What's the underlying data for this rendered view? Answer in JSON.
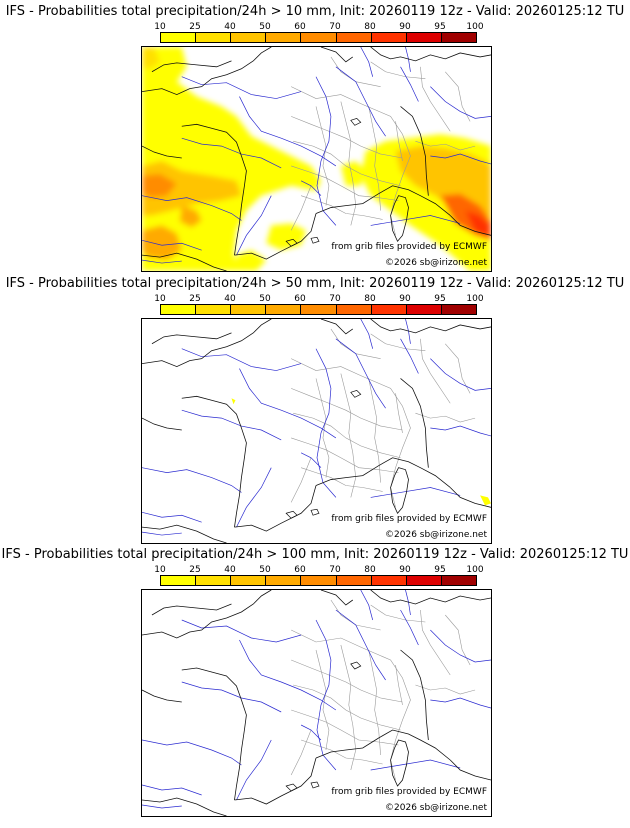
{
  "colorbar": {
    "labels": [
      "10",
      "25",
      "40",
      "50",
      "60",
      "70",
      "80",
      "90",
      "95",
      "100"
    ],
    "colors": [
      "#ffff00",
      "#ffe000",
      "#ffc400",
      "#ffaa00",
      "#ff8c00",
      "#ff6600",
      "#ff3300",
      "#dd0000",
      "#a00000",
      "#6a0000"
    ]
  },
  "credits": {
    "source": "from grib files provided by ECMWF",
    "copyright": "©2026 sb@irizone.net"
  },
  "panels": [
    {
      "title": "IFS - Probabilities total precipitation/24h > 10 mm, Init: 20260119 12z - Valid: 20260125:12 TU",
      "threshold": "10"
    },
    {
      "title": "IFS - Probabilities total precipitation/24h > 50 mm, Init: 20260119 12z - Valid: 20260125:12 TU",
      "threshold": "50"
    },
    {
      "title": "IFS - Probabilities total precipitation/24h > 100 mm, Init: 20260119 12z - Valid: 20260125:12 TU",
      "threshold": "100"
    }
  ]
}
